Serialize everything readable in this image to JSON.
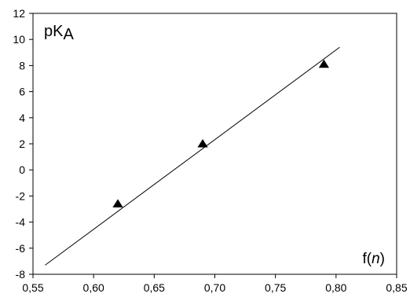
{
  "chart_data": {
    "type": "scatter",
    "title": "",
    "xlabel": {
      "prefix": "f(",
      "var": "n",
      "suffix": ")"
    },
    "ylabel": {
      "base": "pK",
      "sub": "A"
    },
    "xlim": [
      0.55,
      0.85
    ],
    "ylim": [
      -8,
      12
    ],
    "x_ticks": [
      0.55,
      0.6,
      0.65,
      0.7,
      0.75,
      0.8,
      0.85
    ],
    "x_tick_labels": [
      "0,55",
      "0,60",
      "0,65",
      "0,70",
      "0,75",
      "0,80",
      "0,85"
    ],
    "y_ticks": [
      -8,
      -6,
      -4,
      -2,
      0,
      2,
      4,
      6,
      8,
      10,
      12
    ],
    "y_tick_labels": [
      "-8",
      "-6",
      "-4",
      "-2",
      "0",
      "2",
      "4",
      "6",
      "8",
      "10",
      "12"
    ],
    "grid": false,
    "legend": "none",
    "marker": "triangle",
    "marker_color": "#000000",
    "series": [
      {
        "x": [
          0.62,
          0.69,
          0.79
        ],
        "y": [
          -2.6,
          2.0,
          8.1
        ]
      }
    ],
    "fit_line": {
      "x": [
        0.56,
        0.803
      ],
      "y": [
        -7.3,
        9.4
      ]
    }
  }
}
